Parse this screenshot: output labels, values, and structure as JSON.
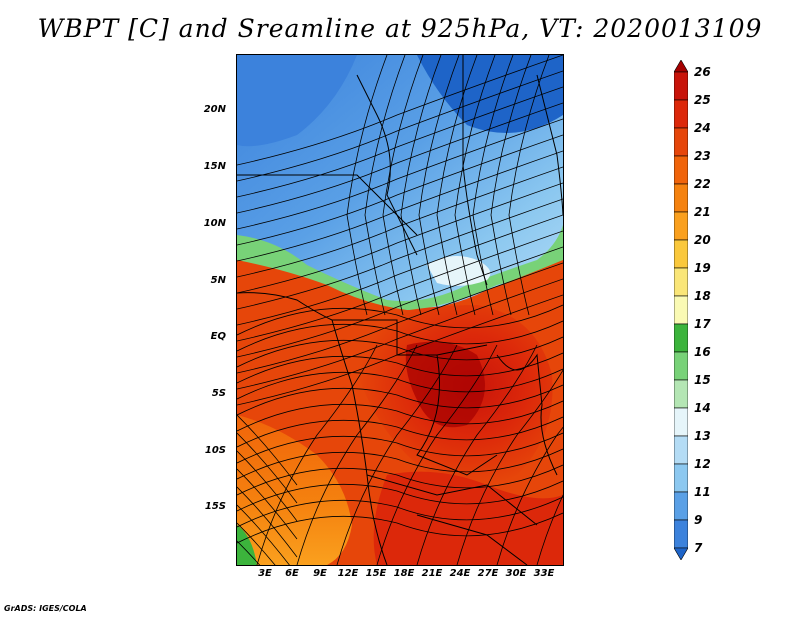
{
  "title": "WBPT [C] and Sreamline at 925hPa, VT: 2020013109",
  "credit": "GrADS: IGES/COLA",
  "lat_labels": [
    "20N",
    "15N",
    "10N",
    "5N",
    "EQ",
    "5S",
    "10S",
    "15S"
  ],
  "lon_labels": [
    "3E",
    "6E",
    "9E",
    "12E",
    "15E",
    "18E",
    "21E",
    "24E",
    "27E",
    "30E",
    "33E"
  ],
  "colorbar": {
    "labels": [
      "26",
      "25",
      "24",
      "23",
      "22",
      "21",
      "20",
      "19",
      "18",
      "17",
      "16",
      "15",
      "14",
      "13",
      "12",
      "11",
      "9",
      "7"
    ],
    "colors": [
      "#a50000",
      "#c8140a",
      "#dc280a",
      "#e6460a",
      "#f0640a",
      "#f5820f",
      "#faa01e",
      "#fac83c",
      "#fae678",
      "#fafab4",
      "#3cb43c",
      "#78d278",
      "#b4e6b4",
      "#e6f5fa",
      "#b4dcf5",
      "#8cc8f0",
      "#5aa0e6",
      "#3c82dc",
      "#1e64c8"
    ]
  },
  "field": {
    "variable": "Wet-bulb potential temperature",
    "level": "925hPa",
    "valid_time": "2020013109"
  }
}
